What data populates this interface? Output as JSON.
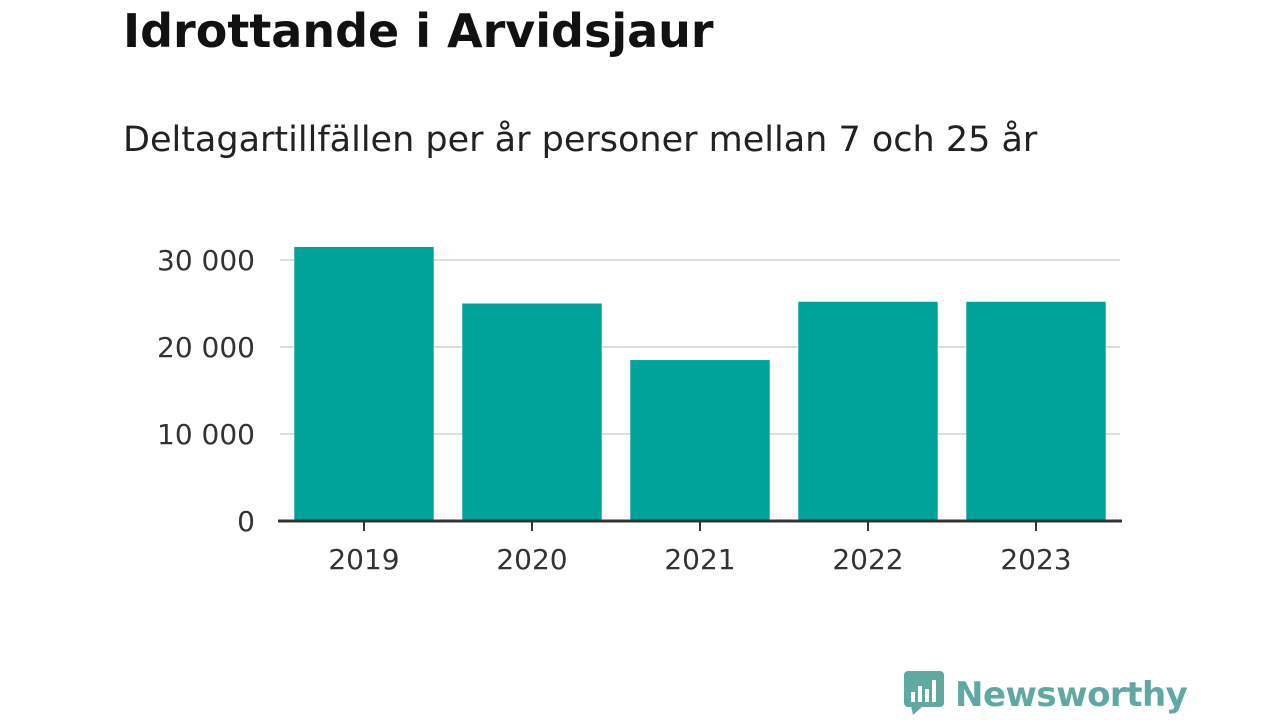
{
  "chart_data": {
    "type": "bar",
    "title": "Idrottande i Arvidsjaur",
    "subtitle": "Deltagartillfällen per år personer mellan 7 och 25 år",
    "categories": [
      "2019",
      "2020",
      "2021",
      "2022",
      "2023"
    ],
    "values": [
      31500,
      25000,
      18500,
      25200,
      25200
    ],
    "ylim": [
      0,
      30000
    ],
    "yticks": [
      0,
      10000,
      20000,
      30000
    ],
    "ytick_labels": [
      "0",
      "10 000",
      "20 000",
      "30 000"
    ],
    "bar_color": "#00a39a",
    "grid": true,
    "xlabel": "",
    "ylabel": ""
  },
  "brand": {
    "name": "Newsworthy",
    "color": "#5fa9a2",
    "icon": "newsworthy-logo-icon"
  }
}
